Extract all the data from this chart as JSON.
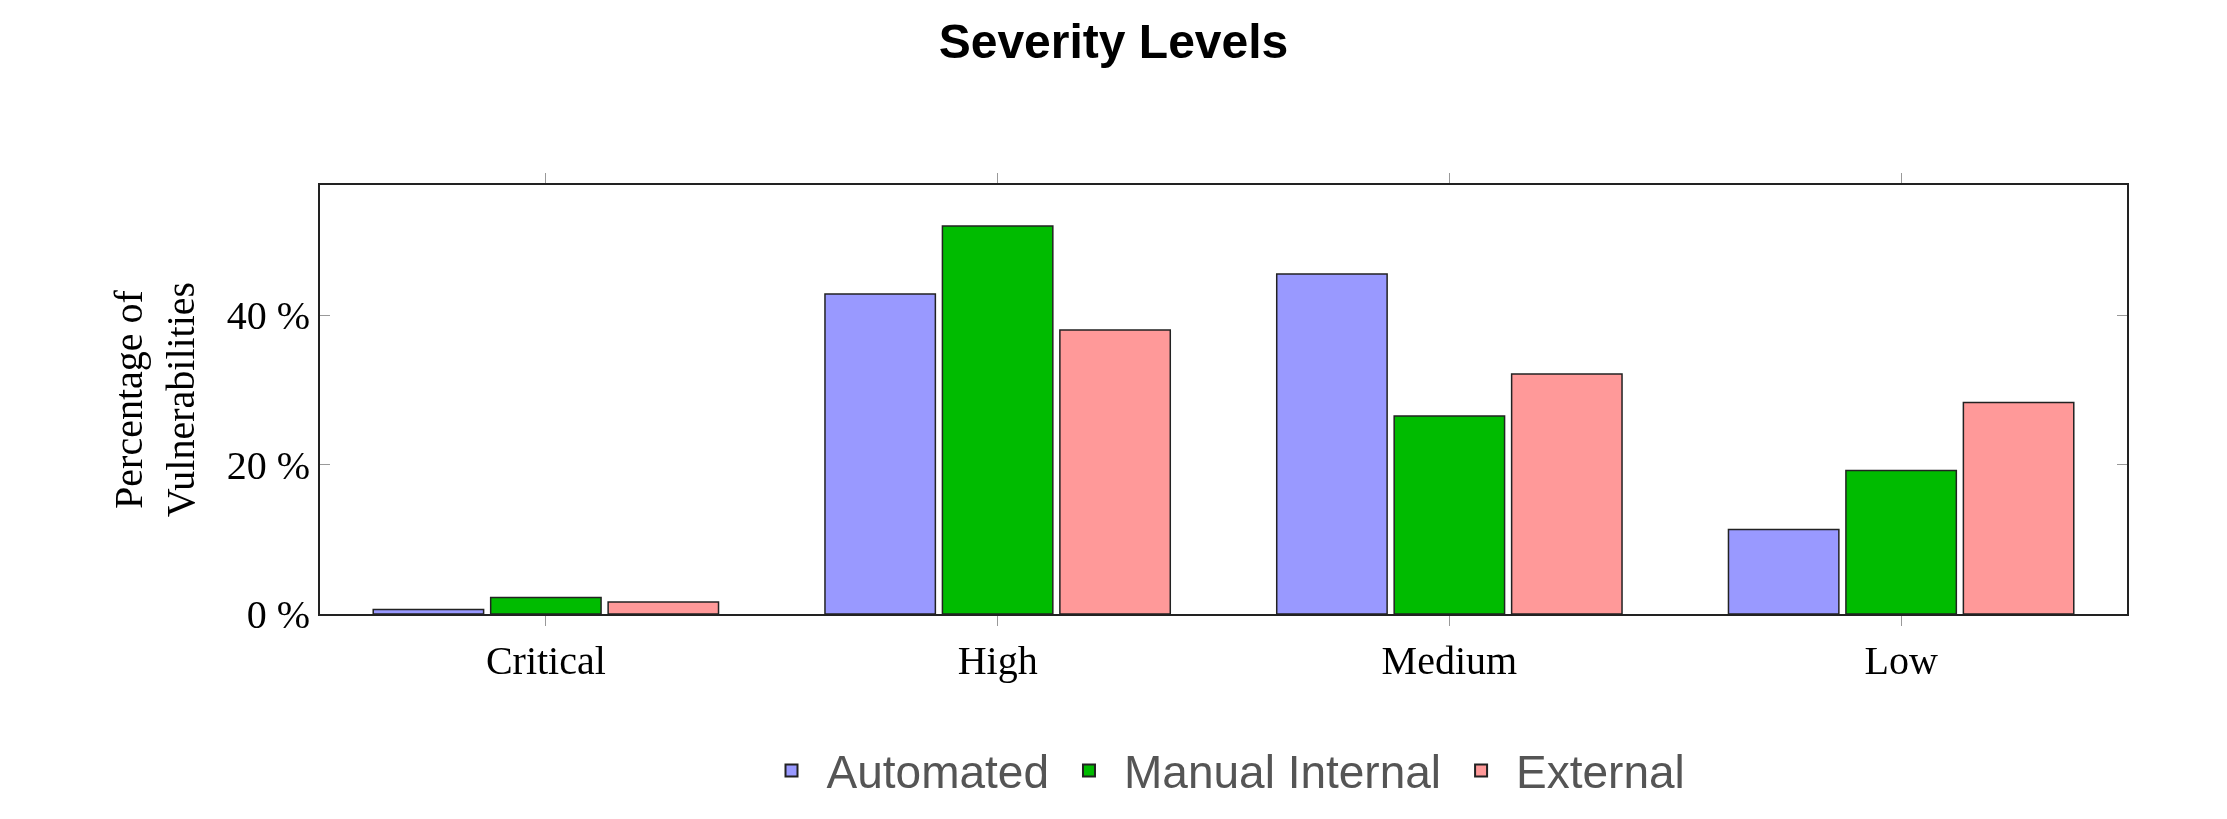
{
  "chart_data": {
    "type": "bar",
    "title": "Severity Levels",
    "ylabel": "Percentage of\nVulnerabilities",
    "categories": [
      "Critical",
      "High",
      "Medium",
      "Low"
    ],
    "series": [
      {
        "name": "Automated",
        "color": "#9999ff",
        "values": [
          0.6,
          42.8,
          45.5,
          11.3
        ]
      },
      {
        "name": "Manual Internal",
        "color": "#00bb00",
        "values": [
          2.2,
          51.9,
          26.5,
          19.2
        ]
      },
      {
        "name": "External",
        "color": "#ff9999",
        "values": [
          1.6,
          38.0,
          32.1,
          28.3
        ]
      }
    ],
    "ylim": [
      0,
      57.4
    ],
    "yticks": [
      {
        "value": 0,
        "label": "0 %"
      },
      {
        "value": 20,
        "label": "20 %"
      },
      {
        "value": 40,
        "label": "40 %"
      }
    ],
    "legend": "bottom"
  }
}
